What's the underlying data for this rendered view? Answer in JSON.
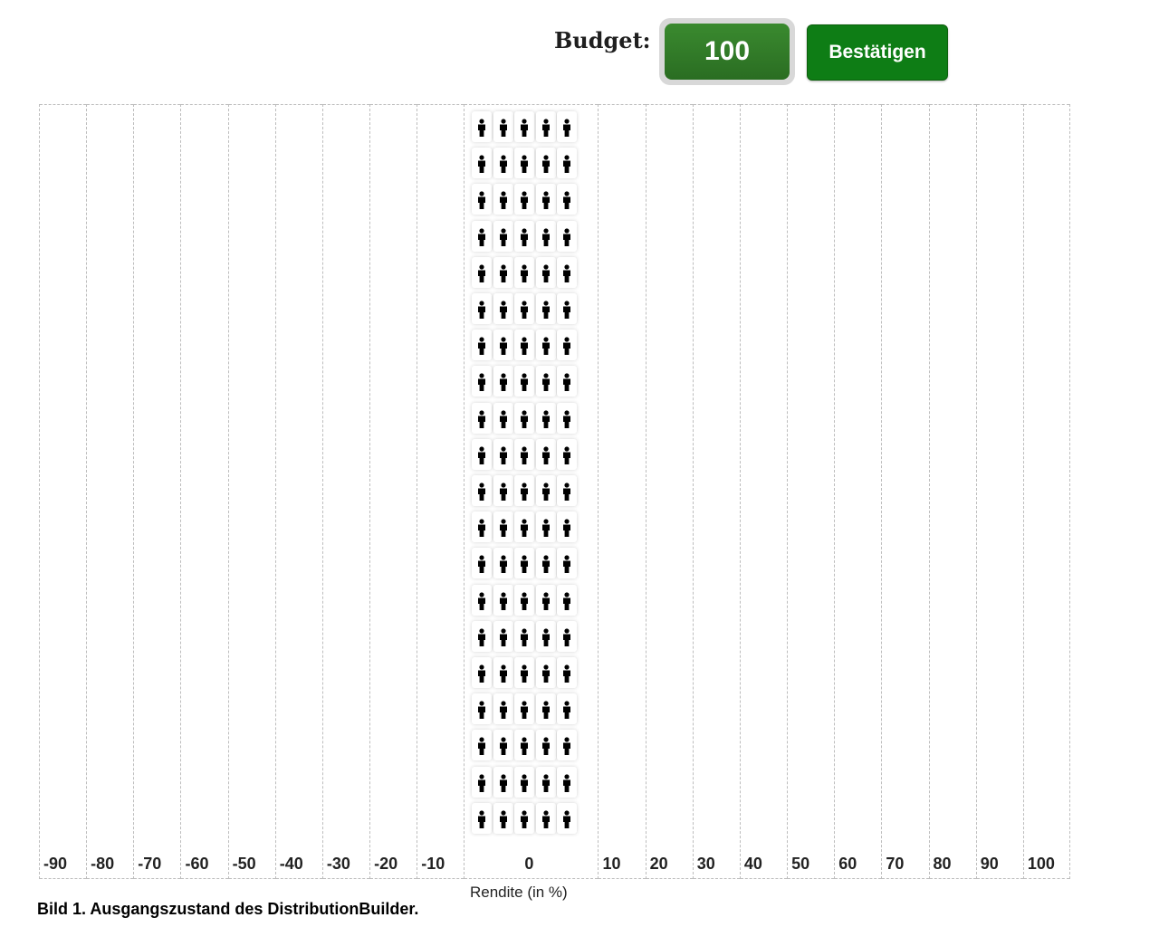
{
  "header": {
    "budget_label": "Budget:",
    "budget_value": "100",
    "confirm_label": "Bestätigen"
  },
  "chart_data": {
    "type": "bar",
    "categories": [
      "-90",
      "-80",
      "-70",
      "-60",
      "-50",
      "-40",
      "-30",
      "-20",
      "-10",
      "0",
      "10",
      "20",
      "30",
      "40",
      "50",
      "60",
      "70",
      "80",
      "90",
      "100"
    ],
    "values": [
      0,
      0,
      0,
      0,
      0,
      0,
      0,
      0,
      0,
      100,
      0,
      0,
      0,
      0,
      0,
      0,
      0,
      0,
      0,
      0
    ],
    "xlabel": "Rendite (in %)",
    "title": "",
    "ylabel": "",
    "ylim": [
      0,
      100
    ],
    "grid": true,
    "marker_icon": "person-icon",
    "tokens_per_row": 5
  },
  "caption": "Bild 1. Ausgangszustand des DistributionBuilder."
}
